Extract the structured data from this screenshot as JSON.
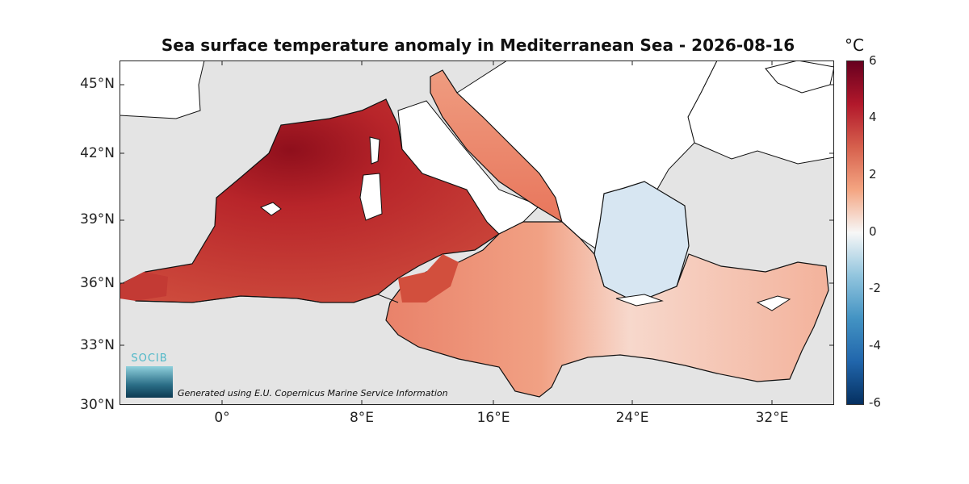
{
  "title": "Sea surface temperature anomaly in Mediterranean Sea - 2026-08-16",
  "unit": "°C",
  "y_ticks": [
    "45°N",
    "42°N",
    "39°N",
    "36°N",
    "33°N",
    "30°N"
  ],
  "x_ticks": [
    "0°",
    "8°E",
    "16°E",
    "24°E",
    "32°E"
  ],
  "colorbar": {
    "ticks": [
      "6",
      "4",
      "2",
      "0",
      "-2",
      "-4",
      "-6"
    ],
    "range": [
      -6,
      6
    ],
    "colors": [
      "#053061",
      "#2166ac",
      "#4393c3",
      "#92c5de",
      "#f7f7f7",
      "#f4a582",
      "#d6604d",
      "#b2182b",
      "#67001f"
    ]
  },
  "logo_text": "SOCIB",
  "credit": "Generated using E.U. Copernicus Marine Service Information",
  "colors": {
    "land": "#ffffff",
    "no_data": "#e5e5e5",
    "sea_west": "#b8252a",
    "sea_central": "#e8735a",
    "sea_aegean": "#c7def0",
    "sea_levant": "#f4b7a2"
  }
}
